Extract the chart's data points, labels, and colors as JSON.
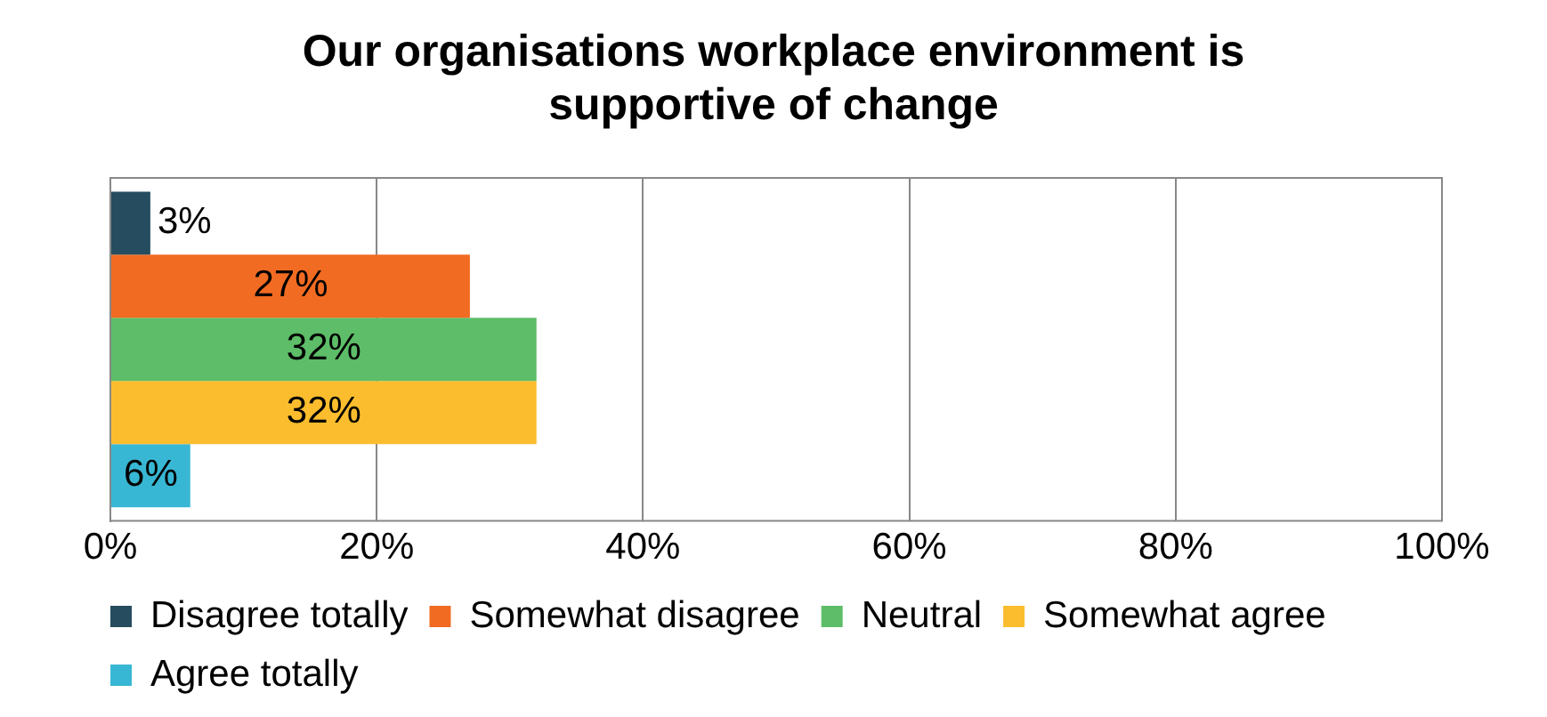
{
  "chart_data": {
    "type": "bar",
    "orientation": "horizontal",
    "title": "Our organisations workplace environment is supportive of change",
    "categories": [
      null
    ],
    "series": [
      {
        "name": "Disagree totally",
        "color": "#264d5f",
        "values": [
          3
        ],
        "value_labels": [
          "3%"
        ]
      },
      {
        "name": "Somewhat disagree",
        "color": "#f26b22",
        "values": [
          27
        ],
        "value_labels": [
          "27%"
        ]
      },
      {
        "name": "Neutral",
        "color": "#5dbd68",
        "values": [
          32
        ],
        "value_labels": [
          "32%"
        ]
      },
      {
        "name": "Somewhat agree",
        "color": "#fbbd2e",
        "values": [
          32
        ],
        "value_labels": [
          "32%"
        ]
      },
      {
        "name": "Agree totally",
        "color": "#38b7d4",
        "values": [
          6
        ],
        "value_labels": [
          "6%"
        ]
      }
    ],
    "xlim": [
      0,
      100
    ],
    "xticks": [
      {
        "value": 0,
        "label": "0%"
      },
      {
        "value": 20,
        "label": "20%"
      },
      {
        "value": 40,
        "label": "40%"
      },
      {
        "value": 60,
        "label": "60%"
      },
      {
        "value": 80,
        "label": "80%"
      },
      {
        "value": 100,
        "label": "100%"
      }
    ],
    "grid": "x",
    "legend": "bottom"
  }
}
